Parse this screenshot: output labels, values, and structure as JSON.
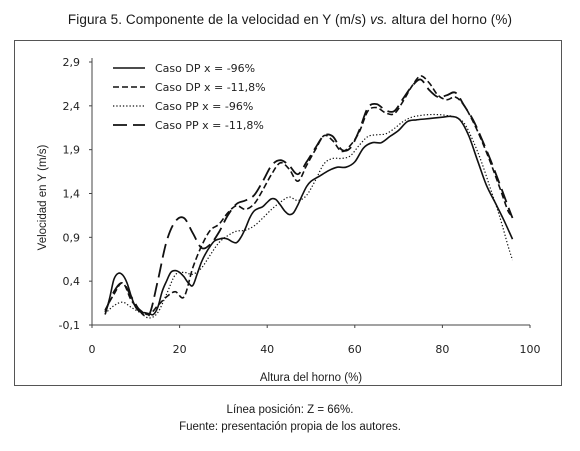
{
  "title": {
    "prefix": "Figura 5. Componente de la velocidad en Y (m/s) ",
    "italic": "vs.",
    "suffix": " altura del horno (%)"
  },
  "notes": {
    "line1": "Línea posición: Z = 66%.",
    "line2": "Fuente: presentación propia de los autores."
  },
  "chart_data": {
    "type": "line",
    "xlabel": "Altura del horno (%)",
    "ylabel": "Velocidad en Y (m/s)",
    "xlim": [
      0,
      100
    ],
    "ylim": [
      -0.1,
      2.9
    ],
    "xticks": [
      "0",
      "20",
      "40",
      "60",
      "80",
      "100"
    ],
    "yticks": [
      "-0,1",
      "0,4",
      "0,9",
      "1,4",
      "1,9",
      "2,4",
      "2,9"
    ],
    "grid": false,
    "legend_position": "top-left",
    "series": [
      {
        "name": "Caso DP x = -96%",
        "dash": "solid",
        "x": [
          3,
          4,
          5,
          6,
          7,
          8,
          9,
          10,
          11,
          12,
          13,
          14,
          15,
          16,
          17,
          18,
          19,
          20,
          21,
          22,
          23,
          24,
          25,
          26,
          27,
          28,
          29,
          30,
          31,
          32,
          33,
          34,
          35,
          36,
          37,
          38,
          39,
          40,
          41,
          42,
          43,
          44,
          45,
          46,
          47,
          48,
          49,
          50,
          52,
          54,
          56,
          58,
          60,
          62,
          64,
          66,
          68,
          70,
          72,
          74,
          76,
          78,
          80,
          82,
          84,
          86,
          88,
          90,
          92,
          94,
          96
        ],
        "y": [
          0.02,
          0.2,
          0.42,
          0.49,
          0.47,
          0.38,
          0.22,
          0.1,
          0.05,
          0.04,
          0.03,
          0.02,
          0.1,
          0.28,
          0.4,
          0.5,
          0.52,
          0.5,
          0.45,
          0.38,
          0.35,
          0.48,
          0.62,
          0.72,
          0.8,
          0.86,
          0.88,
          0.89,
          0.88,
          0.85,
          0.84,
          0.9,
          1.0,
          1.12,
          1.2,
          1.23,
          1.25,
          1.3,
          1.34,
          1.33,
          1.27,
          1.2,
          1.16,
          1.18,
          1.27,
          1.38,
          1.48,
          1.54,
          1.6,
          1.66,
          1.7,
          1.7,
          1.76,
          1.92,
          1.98,
          1.98,
          2.05,
          2.12,
          2.22,
          2.24,
          2.25,
          2.26,
          2.27,
          2.28,
          2.24,
          2.06,
          1.78,
          1.5,
          1.3,
          1.1,
          0.88
        ]
      },
      {
        "name": "Caso DP x = -11,8%",
        "dash": "short",
        "x": [
          3,
          5,
          7,
          9,
          11,
          13,
          15,
          17,
          19,
          21,
          23,
          25,
          27,
          29,
          31,
          33,
          35,
          37,
          39,
          41,
          43,
          45,
          47,
          49,
          51,
          53,
          55,
          57,
          59,
          61,
          63,
          65,
          67,
          69,
          71,
          73,
          75,
          77,
          79,
          81,
          83,
          85,
          87,
          89,
          91,
          93,
          95,
          96
        ],
        "y": [
          0.07,
          0.25,
          0.38,
          0.18,
          0.07,
          0.02,
          0.12,
          0.22,
          0.28,
          0.22,
          0.55,
          0.8,
          0.98,
          1.05,
          1.18,
          1.26,
          1.22,
          1.28,
          1.44,
          1.62,
          1.75,
          1.68,
          1.54,
          1.72,
          1.9,
          2.06,
          2.0,
          1.88,
          1.95,
          2.1,
          2.34,
          2.38,
          2.32,
          2.31,
          2.45,
          2.62,
          2.74,
          2.66,
          2.52,
          2.47,
          2.5,
          2.4,
          2.22,
          2.0,
          1.75,
          1.48,
          1.2,
          1.15
        ]
      },
      {
        "name": "Caso PP x = -96%",
        "dash": "dotted",
        "x": [
          3,
          5,
          7,
          9,
          11,
          13,
          15,
          17,
          19,
          21,
          23,
          25,
          27,
          29,
          31,
          33,
          35,
          37,
          39,
          41,
          43,
          45,
          47,
          49,
          51,
          53,
          55,
          57,
          59,
          61,
          63,
          65,
          67,
          69,
          71,
          73,
          75,
          77,
          79,
          81,
          83,
          85,
          87,
          89,
          91,
          93,
          95,
          96
        ],
        "y": [
          0.03,
          0.12,
          0.16,
          0.1,
          0.04,
          -0.02,
          0.04,
          0.25,
          0.47,
          0.5,
          0.48,
          0.55,
          0.7,
          0.84,
          0.92,
          0.97,
          0.98,
          1.03,
          1.12,
          1.22,
          1.3,
          1.36,
          1.32,
          1.38,
          1.55,
          1.74,
          1.8,
          1.8,
          1.83,
          1.95,
          2.05,
          2.07,
          2.08,
          2.14,
          2.22,
          2.27,
          2.29,
          2.3,
          2.3,
          2.29,
          2.27,
          2.2,
          2.0,
          1.75,
          1.45,
          1.15,
          0.8,
          0.64
        ]
      },
      {
        "name": "Caso PP x = -11,8%",
        "dash": "long",
        "x": [
          3,
          5,
          7,
          9,
          11,
          13,
          15,
          17,
          19,
          21,
          23,
          25,
          27,
          29,
          31,
          33,
          35,
          37,
          39,
          41,
          43,
          45,
          47,
          49,
          51,
          53,
          55,
          57,
          59,
          61,
          63,
          65,
          67,
          69,
          71,
          73,
          75,
          77,
          79,
          81,
          83,
          85,
          87,
          89,
          91,
          93,
          95,
          96
        ],
        "y": [
          0.05,
          0.28,
          0.38,
          0.22,
          0.06,
          0.01,
          0.4,
          0.85,
          1.08,
          1.12,
          0.95,
          0.78,
          0.82,
          0.96,
          1.15,
          1.28,
          1.32,
          1.38,
          1.54,
          1.72,
          1.78,
          1.72,
          1.62,
          1.76,
          1.92,
          2.06,
          2.05,
          1.9,
          1.92,
          2.12,
          2.38,
          2.42,
          2.35,
          2.34,
          2.48,
          2.62,
          2.7,
          2.58,
          2.5,
          2.52,
          2.55,
          2.4,
          2.24,
          2.02,
          1.78,
          1.52,
          1.25,
          1.12
        ]
      }
    ]
  }
}
